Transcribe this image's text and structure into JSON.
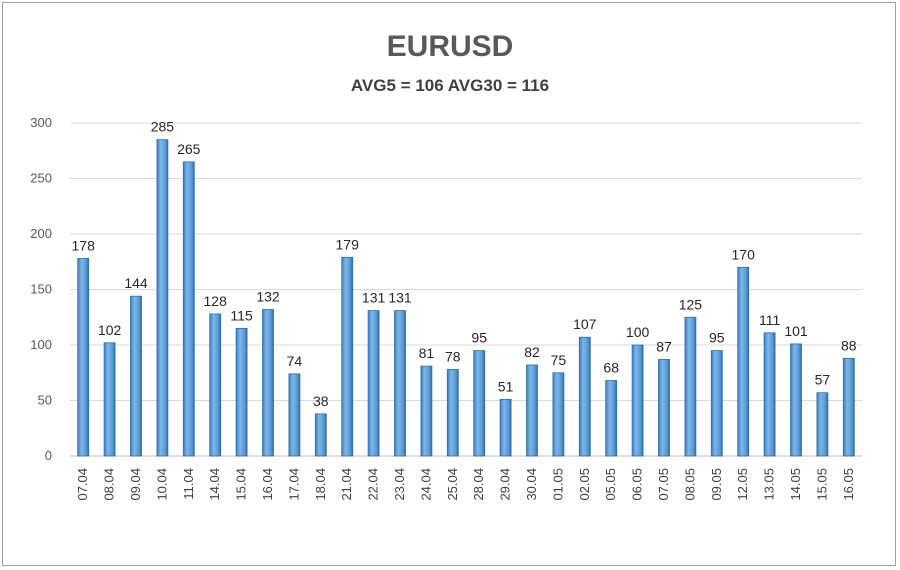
{
  "chart_data": {
    "type": "bar",
    "title": "EURUSD",
    "subtitle": "AVG5 = 106 AVG30 = 116",
    "categories": [
      "07.04",
      "08.04",
      "09.04",
      "10.04",
      "11.04",
      "14.04",
      "15.04",
      "16.04",
      "17.04",
      "18.04",
      "21.04",
      "22.04",
      "23.04",
      "24.04",
      "25.04",
      "28.04",
      "29.04",
      "30.04",
      "01.05",
      "02.05",
      "05.05",
      "06.05",
      "07.05",
      "08.05",
      "09.05",
      "12.05",
      "13.05",
      "14.05",
      "15.05",
      "16.05"
    ],
    "values": [
      178,
      102,
      144,
      285,
      265,
      128,
      115,
      132,
      74,
      38,
      179,
      131,
      131,
      81,
      78,
      95,
      51,
      82,
      75,
      107,
      68,
      100,
      87,
      125,
      95,
      170,
      111,
      101,
      57,
      88
    ],
    "ylim": [
      0,
      300
    ],
    "yticks": [
      0,
      50,
      100,
      150,
      200,
      250,
      300
    ],
    "grid": true,
    "legend": "none",
    "bar_color": "#5b9bd5",
    "bar_edge_color": "#2e6faa"
  }
}
